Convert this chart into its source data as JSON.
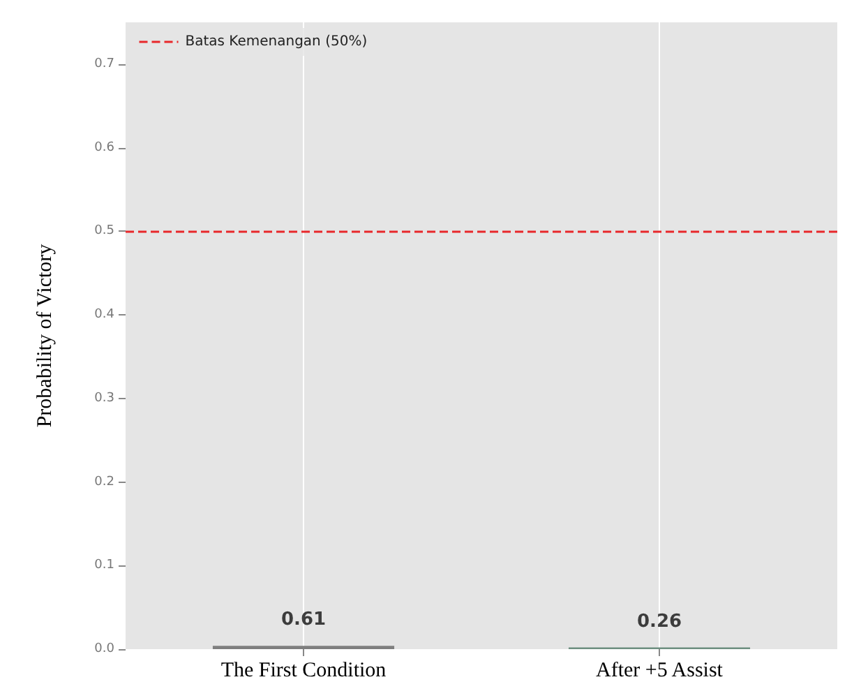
{
  "chart_data": {
    "type": "bar",
    "ylabel": "Probability of Victory",
    "categories": [
      "The First Condition",
      "After +5 Assist"
    ],
    "values": [
      0.004,
      0.002
    ],
    "colors": [
      "#7f7f7f",
      "#6e8f80"
    ],
    "annotations": [
      {
        "text": "0.61",
        "x": "The First Condition",
        "y": 0.004
      },
      {
        "text": "0.26",
        "x": "After +5 Assist",
        "y": 0.002
      }
    ],
    "ylim": [
      0,
      0.75
    ],
    "yticks": [
      {
        "value": 0,
        "label": "0.0"
      },
      {
        "value": 0.1,
        "label": "0.1"
      },
      {
        "value": 0.2,
        "label": "0.2"
      },
      {
        "value": 0.3,
        "label": "0.3"
      },
      {
        "value": 0.4,
        "label": "0.4"
      },
      {
        "value": 0.5,
        "label": "0.5"
      },
      {
        "value": 0.6,
        "label": "0.6"
      },
      {
        "value": 0.7,
        "label": "0.7"
      }
    ],
    "ref_lines": [
      {
        "axis": "y",
        "value": 0.5,
        "label": "Batas Kemenangan (50%)",
        "color": "#e8282b",
        "line_style": "dashed"
      }
    ],
    "grid": "x",
    "legend": "top left"
  }
}
